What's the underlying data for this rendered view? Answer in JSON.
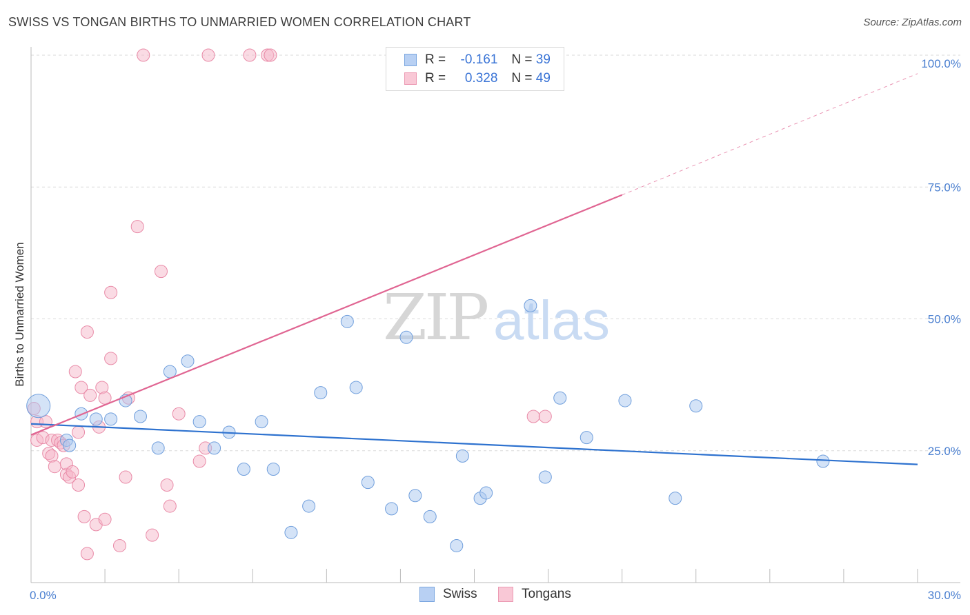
{
  "header": {
    "title": "SWISS VS TONGAN BIRTHS TO UNMARRIED WOMEN CORRELATION CHART",
    "source": "Source: ZipAtlas.com"
  },
  "watermark": {
    "zip": "ZIP",
    "atlas": "atlas"
  },
  "legend": {
    "swiss": {
      "r_label": "R =",
      "r_value": "-0.161",
      "n_label": "N =",
      "n_value": "39"
    },
    "tongans": {
      "r_label": "R =",
      "r_value": "0.328",
      "n_label": "N =",
      "n_value": "49"
    }
  },
  "colors": {
    "swiss_fill": "#a9c7f0",
    "swiss_stroke": "#6f9edc",
    "swiss_line": "#2e72cf",
    "tongan_fill": "#f6b8ca",
    "tongan_stroke": "#e98aa7",
    "tongan_line": "#e06592",
    "axis_text": "#4a7fd0",
    "grid": "#d9d9d9"
  },
  "chart_data": {
    "type": "scatter",
    "title": "SWISS VS TONGAN BIRTHS TO UNMARRIED WOMEN CORRELATION CHART",
    "xlabel": "",
    "ylabel": "Births to Unmarried Women",
    "xlim": [
      0,
      30
    ],
    "ylim": [
      0,
      100
    ],
    "x_tick_labels": [
      "0.0%",
      "30.0%"
    ],
    "y_ticks": [
      25,
      50,
      75,
      100
    ],
    "y_tick_labels": [
      "25.0%",
      "50.0%",
      "75.0%",
      "100.0%"
    ],
    "legend_labels": [
      "Swiss",
      "Tongans"
    ],
    "series": [
      {
        "name": "Swiss",
        "r": -0.161,
        "n": 39,
        "trend": {
          "x0": 0,
          "y0": 30.1,
          "x1": 30,
          "y1": 22.4
        },
        "points": [
          [
            0.25,
            33.5,
            "big"
          ],
          [
            1.2,
            27.0
          ],
          [
            1.3,
            26.0
          ],
          [
            1.7,
            32.0
          ],
          [
            2.2,
            31.0
          ],
          [
            2.7,
            31.0
          ],
          [
            3.2,
            34.5
          ],
          [
            3.7,
            31.5
          ],
          [
            4.3,
            25.5
          ],
          [
            4.7,
            40.0
          ],
          [
            5.3,
            42.0
          ],
          [
            5.7,
            30.5
          ],
          [
            6.2,
            25.5
          ],
          [
            6.7,
            28.5
          ],
          [
            7.2,
            21.5
          ],
          [
            7.8,
            30.5
          ],
          [
            8.2,
            21.5
          ],
          [
            8.8,
            9.5
          ],
          [
            9.4,
            14.5
          ],
          [
            9.8,
            36.0
          ],
          [
            10.7,
            49.5
          ],
          [
            11.0,
            37.0
          ],
          [
            11.4,
            19.0
          ],
          [
            12.2,
            14.0
          ],
          [
            12.7,
            46.5
          ],
          [
            13.0,
            16.5
          ],
          [
            13.5,
            12.5
          ],
          [
            14.4,
            7.0
          ],
          [
            14.6,
            24.0
          ],
          [
            15.2,
            16.0
          ],
          [
            15.4,
            17.0
          ],
          [
            16.9,
            52.5
          ],
          [
            17.4,
            20.0
          ],
          [
            17.9,
            35.0
          ],
          [
            18.8,
            27.5
          ],
          [
            20.1,
            34.5
          ],
          [
            21.8,
            16.0
          ],
          [
            22.5,
            33.5
          ],
          [
            26.8,
            23.0
          ]
        ]
      },
      {
        "name": "Tongans",
        "r": 0.328,
        "n": 49,
        "trend": {
          "x0": 0,
          "y0": 28.0,
          "x1": 20.0,
          "y1": 73.5,
          "dash_x1": 30.0,
          "dash_y1": 96.5
        },
        "points": [
          [
            0.1,
            33.0
          ],
          [
            0.2,
            30.5
          ],
          [
            0.2,
            27.0
          ],
          [
            0.4,
            27.5
          ],
          [
            0.5,
            30.5
          ],
          [
            0.6,
            24.5
          ],
          [
            0.7,
            27.0
          ],
          [
            0.7,
            24.0
          ],
          [
            0.8,
            22.0
          ],
          [
            0.9,
            27.0
          ],
          [
            1.0,
            26.5
          ],
          [
            1.1,
            26.0
          ],
          [
            1.2,
            20.5
          ],
          [
            1.2,
            22.5
          ],
          [
            1.3,
            20.0
          ],
          [
            1.4,
            21.0
          ],
          [
            1.5,
            40.0
          ],
          [
            1.6,
            28.5
          ],
          [
            1.6,
            18.5
          ],
          [
            1.7,
            37.0
          ],
          [
            1.8,
            12.5
          ],
          [
            1.9,
            47.5
          ],
          [
            1.9,
            5.5
          ],
          [
            2.0,
            35.5
          ],
          [
            2.2,
            11.0
          ],
          [
            2.3,
            29.5
          ],
          [
            2.4,
            37.0
          ],
          [
            2.5,
            35.0
          ],
          [
            2.5,
            12.0
          ],
          [
            2.7,
            55.0
          ],
          [
            2.7,
            42.5
          ],
          [
            3.0,
            7.0
          ],
          [
            3.2,
            20.0
          ],
          [
            3.3,
            35.0
          ],
          [
            3.6,
            67.5
          ],
          [
            3.8,
            100.0
          ],
          [
            4.1,
            9.0
          ],
          [
            4.4,
            59.0
          ],
          [
            4.6,
            18.5
          ],
          [
            4.7,
            14.5
          ],
          [
            5.0,
            32.0
          ],
          [
            5.7,
            23.0
          ],
          [
            5.9,
            25.5
          ],
          [
            6.0,
            100.0
          ],
          [
            7.4,
            100.0
          ],
          [
            8.0,
            100.0
          ],
          [
            8.1,
            100.0
          ],
          [
            17.0,
            31.5
          ],
          [
            17.4,
            31.5
          ]
        ]
      }
    ]
  }
}
